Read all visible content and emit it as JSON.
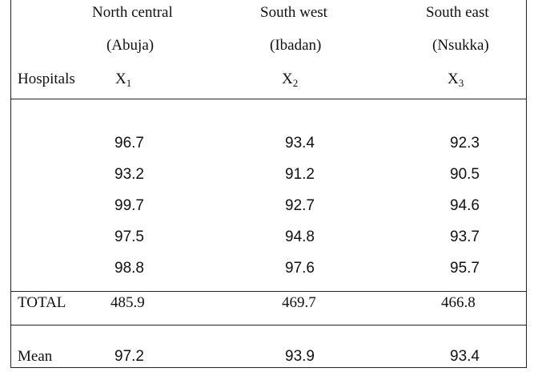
{
  "table": {
    "header": {
      "regions": [
        {
          "name": "North central",
          "city": "(Abuja)",
          "var": "X",
          "sub": "1"
        },
        {
          "name": "South west",
          "city": "(Ibadan)",
          "var": "X",
          "sub": "2"
        },
        {
          "name": "South east",
          "city": "(Nsukka)",
          "var": "X",
          "sub": "3"
        }
      ],
      "row_label": "Hospitals"
    },
    "rows": [
      [
        "96.7",
        "93.4",
        "92.3"
      ],
      [
        "93.2",
        "91.2",
        "90.5"
      ],
      [
        "99.7",
        "92.7",
        "94.6"
      ],
      [
        "97.5",
        "94.8",
        "93.7"
      ],
      [
        "98.8",
        "97.6",
        "95.7"
      ]
    ],
    "total": {
      "label": "TOTAL",
      "values": [
        "485.9",
        "469.7",
        "466.8"
      ]
    },
    "mean": {
      "label": "Mean",
      "values": [
        "97.2",
        "93.9",
        "93.4"
      ]
    }
  }
}
